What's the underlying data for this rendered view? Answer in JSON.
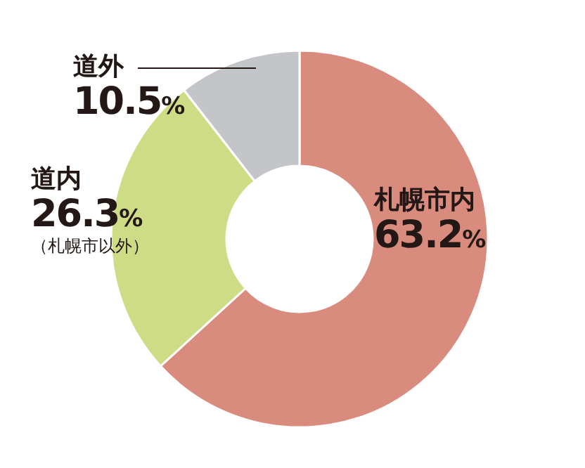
{
  "chart_data": {
    "type": "donut",
    "categories": [
      "札幌市内",
      "道内",
      "道外"
    ],
    "values": [
      63.2,
      26.3,
      10.5
    ],
    "colors": [
      "#d98b7e",
      "#cfdc86",
      "#c3c5c8"
    ],
    "value_labels": [
      "63.2%",
      "26.3%",
      "10.5%"
    ],
    "annotations": [
      "（札幌市以外）"
    ]
  }
}
